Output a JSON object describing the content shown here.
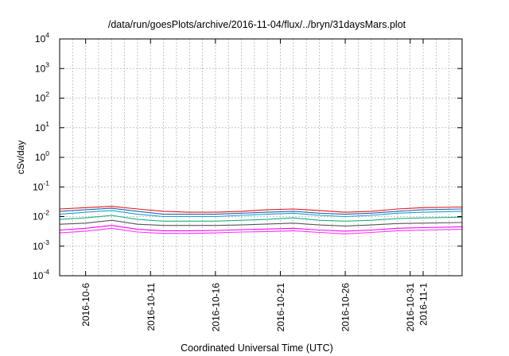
{
  "chart_data": {
    "type": "line",
    "title": "/data/run/goesPlots/archive/2016-11-04/flux/../bryn/31daysMars.plot",
    "xlabel": "Coordinated Universal Time (UTC)",
    "ylabel": "cSv/day",
    "yscale": "log",
    "ylim": [
      0.0001,
      10000
    ],
    "y_ticks": [
      {
        "base": "10",
        "exp": "-4",
        "value": 0.0001
      },
      {
        "base": "10",
        "exp": "-3",
        "value": 0.001
      },
      {
        "base": "10",
        "exp": "-2",
        "value": 0.01
      },
      {
        "base": "10",
        "exp": "-1",
        "value": 0.1
      },
      {
        "base": "10",
        "exp": "0",
        "value": 1
      },
      {
        "base": "10",
        "exp": "1",
        "value": 10
      },
      {
        "base": "10",
        "exp": "2",
        "value": 100
      },
      {
        "base": "10",
        "exp": "3",
        "value": 1000
      },
      {
        "base": "10",
        "exp": "4",
        "value": 10000
      }
    ],
    "xlim": [
      "2016-10-04",
      "2016-11-04"
    ],
    "x_ticks": [
      "2016-10-6",
      "2016-10-11",
      "2016-10-16",
      "2016-10-21",
      "2016-10-26",
      "2016-10-31",
      "2016-11-1"
    ],
    "x_tick_dates": [
      "2016-10-06",
      "2016-10-11",
      "2016-10-16",
      "2016-10-21",
      "2016-10-26",
      "2016-10-31",
      "2016-11-01"
    ],
    "x_grid_step_days": 1,
    "grid": true,
    "series": [
      {
        "color": "#e41a1c",
        "x": [
          "2016-10-04",
          "2016-10-06",
          "2016-10-08",
          "2016-10-10",
          "2016-10-12",
          "2016-10-14",
          "2016-10-16",
          "2016-10-18",
          "2016-10-20",
          "2016-10-22",
          "2016-10-24",
          "2016-10-26",
          "2016-10-28",
          "2016-10-30",
          "2016-11-01",
          "2016-11-04"
        ],
        "values": [
          0.018,
          0.02,
          0.022,
          0.018,
          0.015,
          0.014,
          0.014,
          0.015,
          0.017,
          0.018,
          0.016,
          0.014,
          0.015,
          0.018,
          0.02,
          0.021
        ]
      },
      {
        "color": "#2166ac",
        "x": [
          "2016-10-04",
          "2016-10-06",
          "2016-10-08",
          "2016-10-10",
          "2016-10-12",
          "2016-10-14",
          "2016-10-16",
          "2016-10-18",
          "2016-10-20",
          "2016-10-22",
          "2016-10-24",
          "2016-10-26",
          "2016-10-28",
          "2016-10-30",
          "2016-11-01",
          "2016-11-04"
        ],
        "values": [
          0.015,
          0.017,
          0.019,
          0.015,
          0.012,
          0.012,
          0.012,
          0.013,
          0.014,
          0.015,
          0.013,
          0.012,
          0.013,
          0.015,
          0.017,
          0.018
        ]
      },
      {
        "color": "#1f9bd7",
        "x": [
          "2016-10-04",
          "2016-10-06",
          "2016-10-08",
          "2016-10-10",
          "2016-10-12",
          "2016-10-14",
          "2016-10-16",
          "2016-10-18",
          "2016-10-20",
          "2016-10-22",
          "2016-10-24",
          "2016-10-26",
          "2016-10-28",
          "2016-10-30",
          "2016-11-01",
          "2016-11-04"
        ],
        "values": [
          0.012,
          0.014,
          0.016,
          0.012,
          0.01,
          0.01,
          0.01,
          0.011,
          0.012,
          0.013,
          0.011,
          0.01,
          0.011,
          0.013,
          0.014,
          0.015
        ]
      },
      {
        "color": "#1bb37a",
        "x": [
          "2016-10-04",
          "2016-10-06",
          "2016-10-08",
          "2016-10-10",
          "2016-10-12",
          "2016-10-14",
          "2016-10-16",
          "2016-10-18",
          "2016-10-20",
          "2016-10-22",
          "2016-10-24",
          "2016-10-26",
          "2016-10-28",
          "2016-10-30",
          "2016-11-01",
          "2016-11-04"
        ],
        "values": [
          0.008,
          0.009,
          0.011,
          0.008,
          0.007,
          0.007,
          0.007,
          0.0075,
          0.008,
          0.009,
          0.0075,
          0.007,
          0.0075,
          0.0085,
          0.009,
          0.0095
        ]
      },
      {
        "color": "#555555",
        "x": [
          "2016-10-04",
          "2016-10-06",
          "2016-10-08",
          "2016-10-10",
          "2016-10-12",
          "2016-10-14",
          "2016-10-16",
          "2016-10-18",
          "2016-10-20",
          "2016-10-22",
          "2016-10-24",
          "2016-10-26",
          "2016-10-28",
          "2016-10-30",
          "2016-11-01",
          "2016-11-04"
        ],
        "values": [
          0.0055,
          0.006,
          0.0075,
          0.0055,
          0.005,
          0.005,
          0.005,
          0.0052,
          0.0056,
          0.006,
          0.0052,
          0.0048,
          0.0052,
          0.0058,
          0.006,
          0.0063
        ]
      },
      {
        "color": "#ff00ff",
        "x": [
          "2016-10-04",
          "2016-10-06",
          "2016-10-08",
          "2016-10-10",
          "2016-10-12",
          "2016-10-14",
          "2016-10-16",
          "2016-10-18",
          "2016-10-20",
          "2016-10-22",
          "2016-10-24",
          "2016-10-26",
          "2016-10-28",
          "2016-10-30",
          "2016-11-01",
          "2016-11-04"
        ],
        "values": [
          0.0035,
          0.004,
          0.005,
          0.0037,
          0.0033,
          0.0033,
          0.0034,
          0.0036,
          0.0038,
          0.004,
          0.0035,
          0.0032,
          0.0035,
          0.004,
          0.0042,
          0.0045
        ]
      },
      {
        "color": "#ff33ff",
        "x": [
          "2016-10-04",
          "2016-10-06",
          "2016-10-08",
          "2016-10-10",
          "2016-10-12",
          "2016-10-14",
          "2016-10-16",
          "2016-10-18",
          "2016-10-20",
          "2016-10-22",
          "2016-10-24",
          "2016-10-26",
          "2016-10-28",
          "2016-10-30",
          "2016-11-01",
          "2016-11-04"
        ],
        "values": [
          0.0028,
          0.0032,
          0.004,
          0.003,
          0.0027,
          0.0027,
          0.0028,
          0.003,
          0.0031,
          0.0033,
          0.0029,
          0.0026,
          0.0029,
          0.0033,
          0.0035,
          0.0037
        ]
      }
    ]
  }
}
